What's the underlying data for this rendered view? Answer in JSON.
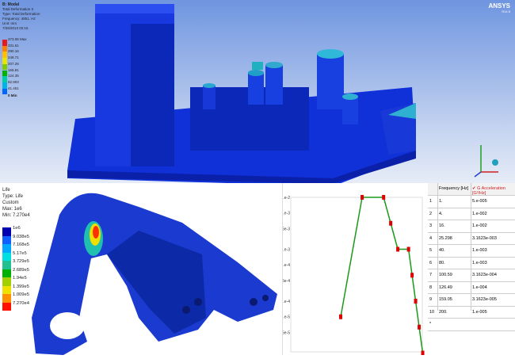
{
  "top_panel": {
    "title": "B: Modal",
    "lines": [
      "Total Deformation 3",
      "Type: Total Deformation",
      "Frequency: 4851. Hz",
      "Unit: mm",
      "7/26/2013 02:15"
    ],
    "legend": [
      "373.06 Max",
      "331.61",
      "290.16",
      "248.71",
      "207.26",
      "165.81",
      "124.35",
      "82.903",
      "41.451",
      "0 Min"
    ],
    "legend_colors": [
      "#e41a1c",
      "#ff7f00",
      "#ffbf00",
      "#e6e600",
      "#80cc00",
      "#00b300",
      "#00ccaa",
      "#00b4e6",
      "#0066ff",
      "#0000cc"
    ],
    "logo": "ANSYS",
    "version": "R14.5"
  },
  "life_panel": {
    "lines": [
      "Life",
      "Type: Life",
      "Custom",
      "Max: 1e6",
      "Min: 7.270e4"
    ],
    "legend": [
      "1e6",
      "9.038e5",
      "7.168e5",
      "5.17e5",
      "3.729e5",
      "2.689e5",
      "1.94e5",
      "1.399e5",
      "1.009e5",
      "7.270e4"
    ],
    "legend_colors": [
      "#0000b0",
      "#1060ff",
      "#00a8ff",
      "#00e0e0",
      "#20c090",
      "#00b000",
      "#a0d000",
      "#f0e000",
      "#ff9000",
      "#ff1000"
    ]
  },
  "chart_data": {
    "type": "line",
    "xscale": "log",
    "yscale": "log",
    "x": [
      1,
      4,
      16,
      25.298,
      40,
      80,
      100.59,
      126.49,
      159.05,
      200
    ],
    "y": [
      5e-05,
      0.01,
      0.01,
      0.0031623,
      0.001,
      0.001,
      0.00031623,
      0.0001,
      3.1623e-05,
      1e-05
    ],
    "ytick_labels": [
      "1.e-2",
      "5.e-3",
      "2.5e-3",
      "1.e-3",
      "5.e-4",
      "2.5e-4",
      "1.e-4",
      "5.e-5",
      "2.5e-5",
      "5.8e-6"
    ],
    "ytick_values": [
      0.01,
      0.005,
      0.0025,
      0.001,
      0.0005,
      0.00025,
      0.0001,
      5e-05,
      2.5e-05,
      5.8e-06
    ],
    "line_color": "#1a9a1a",
    "marker_color": "#dd0000"
  },
  "table": {
    "headers": [
      "Frequency [Hz]",
      "G Acceleration [G²/Hz]"
    ],
    "rows": [
      [
        "1",
        "1.",
        "5.e-005"
      ],
      [
        "2",
        "4.",
        "1.e-002"
      ],
      [
        "3",
        "16.",
        "1.e-002"
      ],
      [
        "4",
        "25.298",
        "3.1623e-003"
      ],
      [
        "5",
        "40.",
        "1.e-003"
      ],
      [
        "6",
        "80.",
        "1.e-003"
      ],
      [
        "7",
        "100.59",
        "3.1623e-004"
      ],
      [
        "8",
        "126.49",
        "1.e-004"
      ],
      [
        "9",
        "159.05",
        "3.1623e-005"
      ],
      [
        "10",
        "200.",
        "1.e-005"
      ]
    ],
    "new_row_marker": "*"
  }
}
